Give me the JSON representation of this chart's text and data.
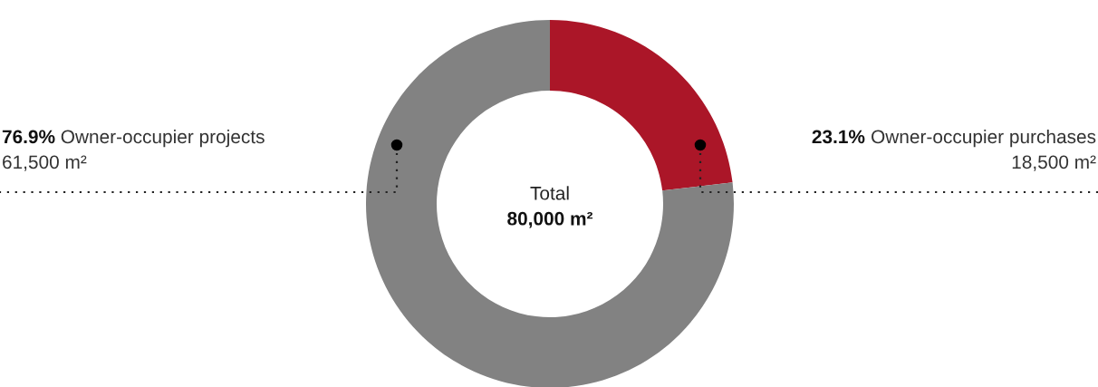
{
  "chart_data": {
    "type": "donut",
    "categories": [
      "Owner-occupier purchases",
      "Owner-occupier projects"
    ],
    "values": [
      18500,
      61500
    ],
    "colors": [
      "#ab1628",
      "#828282"
    ],
    "value_labels": [
      "18,500 m²",
      "61,500 m²"
    ],
    "annotations": [
      "Total",
      "80,000 m²",
      "23.1%",
      "76.9%"
    ]
  }
}
